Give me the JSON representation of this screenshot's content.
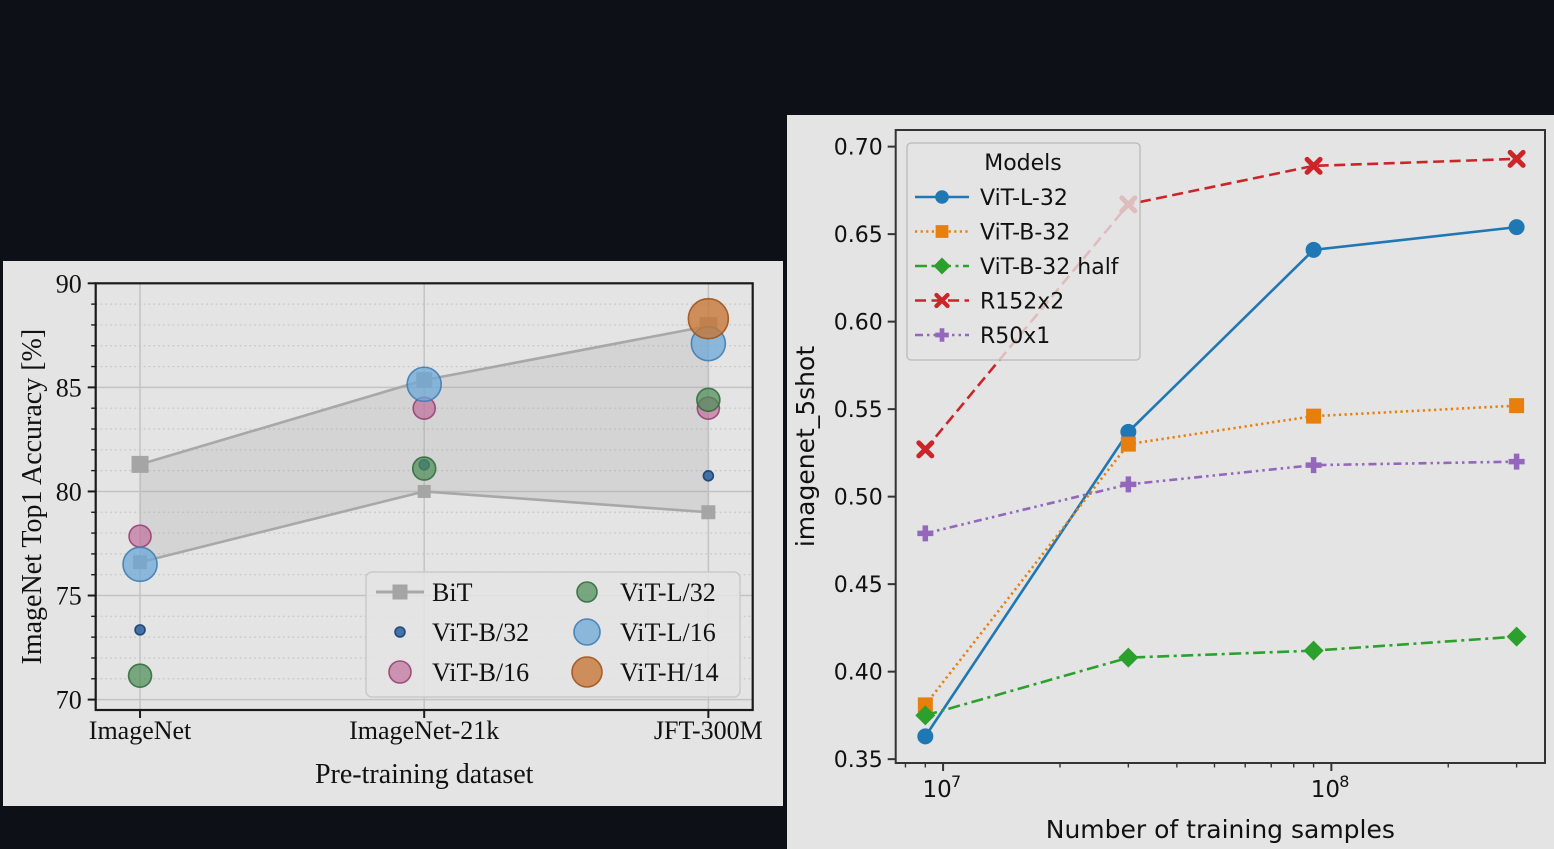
{
  "page": {
    "background": "#0d1117",
    "figure_background": "#e4e4e4"
  },
  "chart_data": [
    {
      "id": "left",
      "type": "scatter",
      "title": "",
      "xlabel": "Pre-training dataset",
      "ylabel": "ImageNet Top1 Accuracy [%]",
      "categories": [
        "ImageNet",
        "ImageNet-21k",
        "JFT-300M"
      ],
      "ylim": [
        69.5,
        90
      ],
      "yticks": [
        70,
        75,
        80,
        85,
        90
      ],
      "grid": "major-solid-minor-dotted",
      "legend_position": "lower right",
      "bit_band": {
        "name": "BiT",
        "upper": [
          81.3,
          85.35,
          87.95
        ],
        "lower": [
          76.6,
          80.0,
          79.0
        ],
        "upper_square_size": [
          17,
          16,
          18
        ],
        "lower_square_size": [
          14,
          13,
          14
        ],
        "line_color": "#a8a8a8",
        "square_color": "#a5a5a5",
        "band_color": "rgba(165,165,165,0.24)"
      },
      "series": [
        {
          "name": "ViT-B/32",
          "values": [
            73.35,
            81.28,
            80.75
          ],
          "radius": 5,
          "fill": "rgba(40,95,158,0.85)",
          "edge": "rgba(23,62,110,0.9)"
        },
        {
          "name": "ViT-B/16",
          "values": [
            77.85,
            84.0,
            84.0
          ],
          "radius": 11,
          "fill": "rgba(193,113,158,0.72)",
          "edge": "rgba(150,66,112,0.9)"
        },
        {
          "name": "ViT-L/32",
          "values": [
            71.15,
            81.1,
            84.4
          ],
          "radius": 11.5,
          "fill": "rgba(76,142,88,0.72)",
          "edge": "rgba(52,110,64,0.9)"
        },
        {
          "name": "ViT-L/16",
          "values": [
            76.5,
            85.15,
            87.1
          ],
          "radius": 17,
          "fill": "rgba(110,168,216,0.75)",
          "edge": "rgba(62,126,180,0.9)"
        },
        {
          "name": "ViT-H/14",
          "values": [
            null,
            null,
            88.3
          ],
          "radius": 20,
          "fill": "rgba(200,120,56,0.8)",
          "edge": "rgba(160,84,30,0.9)"
        }
      ]
    },
    {
      "id": "right",
      "type": "line",
      "title": "",
      "xlabel": "Number of training samples",
      "ylabel": "imagenet_5shot",
      "xscale": "log",
      "x": [
        9000000,
        30000000,
        90000000,
        300000000
      ],
      "xlim": [
        7550000,
        355000000
      ],
      "xticks": [
        {
          "label_base": "10",
          "label_exp": "7",
          "value": 10000000
        },
        {
          "label_base": "10",
          "label_exp": "8",
          "value": 100000000
        }
      ],
      "ylim": [
        0.3478,
        0.7095
      ],
      "yticks": [
        0.35,
        0.4,
        0.45,
        0.5,
        0.55,
        0.6,
        0.65,
        0.7
      ],
      "grid": "none",
      "legend_title": "Models",
      "legend_position": "upper left",
      "series": [
        {
          "name": "ViT-L-32",
          "values": [
            0.363,
            0.537,
            0.641,
            0.654
          ],
          "color": "#1f77b4",
          "dash": "solid",
          "marker": "circle"
        },
        {
          "name": "ViT-B-32",
          "values": [
            0.381,
            0.53,
            0.546,
            0.552
          ],
          "color": "#e67f0e",
          "dash": "dotted",
          "marker": "square"
        },
        {
          "name": "ViT-B-32 half",
          "values": [
            0.375,
            0.408,
            0.412,
            0.42
          ],
          "color": "#2ca02c",
          "dash": "dashdot",
          "marker": "diamond"
        },
        {
          "name": "R152x2",
          "values": [
            0.527,
            0.667,
            0.689,
            0.693
          ],
          "color": "#cc2529",
          "dash": "dashed",
          "marker": "x"
        },
        {
          "name": "R50x1",
          "values": [
            0.479,
            0.507,
            0.518,
            0.52
          ],
          "color": "#9467bd",
          "dash": "dashdotdot",
          "marker": "plus"
        }
      ]
    }
  ]
}
